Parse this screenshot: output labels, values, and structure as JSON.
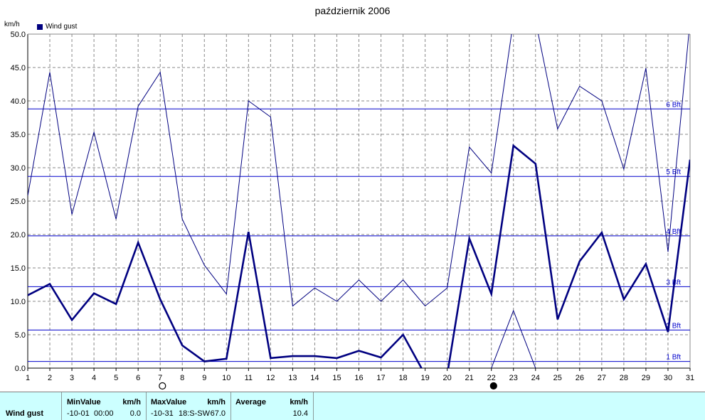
{
  "chart_data": {
    "type": "line",
    "title": "październik 2006",
    "y_unit": "km/h",
    "x": [
      1,
      2,
      3,
      4,
      5,
      6,
      7,
      8,
      9,
      10,
      11,
      12,
      13,
      14,
      15,
      16,
      17,
      18,
      19,
      20,
      21,
      22,
      23,
      24,
      25,
      26,
      27,
      28,
      29,
      30,
      31
    ],
    "ylim": [
      0,
      50
    ],
    "xlim": [
      1,
      31
    ],
    "y_ticks": [
      "0.0",
      "5.0",
      "10.0",
      "15.0",
      "20.0",
      "25.0",
      "30.0",
      "35.0",
      "40.0",
      "45.0",
      "50.0"
    ],
    "grid": true,
    "legend_position": "top-left",
    "series": [
      {
        "name": "Wind gust",
        "style": "bold",
        "values": [
          10.9,
          12.6,
          7.2,
          11.2,
          9.6,
          18.8,
          10.3,
          3.4,
          1.0,
          1.4,
          20.4,
          1.5,
          1.8,
          1.8,
          1.5,
          2.6,
          1.6,
          5.0,
          -1.0,
          -1.0,
          19.4,
          11.1,
          33.3,
          30.6,
          7.3,
          16.0,
          20.3,
          10.3,
          15.6,
          5.4,
          31.2
        ]
      },
      {
        "style": "thin",
        "values": [
          25.8,
          44.3,
          23.0,
          35.3,
          22.3,
          39.2,
          44.3,
          22.3,
          15.4,
          11.1,
          40.0,
          37.6,
          9.3,
          12.0,
          10.0,
          13.2,
          10.0,
          13.2,
          9.3,
          12.0,
          33.1,
          29.2,
          52.0,
          52.0,
          35.8,
          42.2,
          40.0,
          29.8,
          44.9,
          17.4,
          52.0
        ]
      },
      {
        "style": "thin",
        "values": [
          null,
          null,
          null,
          null,
          null,
          null,
          null,
          null,
          null,
          null,
          null,
          null,
          null,
          null,
          null,
          null,
          null,
          null,
          null,
          null,
          null,
          0,
          8.6,
          0,
          null,
          null,
          null,
          null,
          null,
          null,
          null
        ]
      }
    ],
    "reference_lines": [
      {
        "label": "1 Bft",
        "value": 1.0
      },
      {
        "label": "2 Bft",
        "value": 5.7
      },
      {
        "label": "3 Bft",
        "value": 12.2
      },
      {
        "label": "4 Bft",
        "value": 19.8
      },
      {
        "label": "5 Bft",
        "value": 28.7
      },
      {
        "label": "6 Bft",
        "value": 38.8
      }
    ],
    "moon_phases": [
      {
        "day": 7,
        "phase": "full"
      },
      {
        "day": 22,
        "phase": "new"
      }
    ]
  },
  "colors": {
    "series": "#000080",
    "reference": "#0000cc",
    "grid": "#888888",
    "panel_bg": "#ccffff"
  },
  "stats": {
    "row_label": "Wind gust",
    "min_header": "MinValue",
    "min_unit": "km/h",
    "min_date": "-10-01",
    "min_time": "00:00",
    "min_value": "0.0",
    "max_header": "MaxValue",
    "max_unit": "km/h",
    "max_date": "-10-31",
    "max_detail": "18:S-SW",
    "max_value": "67.0",
    "avg_header": "Average",
    "avg_unit": "km/h",
    "avg_value": "10.4"
  }
}
